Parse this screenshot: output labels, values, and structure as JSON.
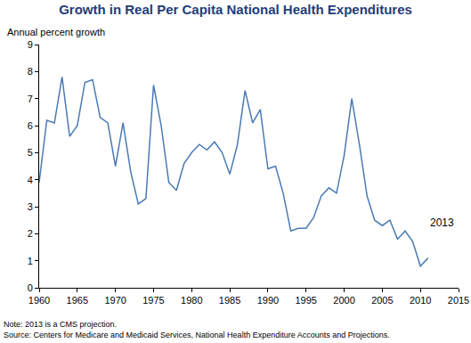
{
  "chart_data": {
    "type": "line",
    "title": "Growth in Real Per Capita National Health Expenditures",
    "y_label": "Annual percent growth",
    "notes": [
      "Note: 2013 is a CMS projection.",
      "Source: Centers for Medicare and Medicaid Services, National Health Expenditure Accounts and Projections."
    ],
    "x": [
      1960,
      1961,
      1962,
      1963,
      1964,
      1965,
      1966,
      1967,
      1968,
      1969,
      1970,
      1971,
      1972,
      1973,
      1974,
      1975,
      1976,
      1977,
      1978,
      1979,
      1980,
      1981,
      1982,
      1983,
      1984,
      1985,
      1986,
      1987,
      1988,
      1989,
      1990,
      1991,
      1992,
      1993,
      1994,
      1995,
      1996,
      1997,
      1998,
      1999,
      2000,
      2001,
      2002,
      2003,
      2004,
      2005,
      2006,
      2007,
      2008,
      2009,
      2010,
      2011
    ],
    "values": [
      3.9,
      6.2,
      6.1,
      7.8,
      5.6,
      6.0,
      7.6,
      7.7,
      6.3,
      6.1,
      4.5,
      6.1,
      4.3,
      3.1,
      3.3,
      7.5,
      6.0,
      3.9,
      3.6,
      4.6,
      5.0,
      5.3,
      5.1,
      5.4,
      5.0,
      4.2,
      5.3,
      7.3,
      6.1,
      6.6,
      4.4,
      4.5,
      3.5,
      2.1,
      2.2,
      2.2,
      2.6,
      3.4,
      3.7,
      3.5,
      4.9,
      7.0,
      5.3,
      3.4,
      2.5,
      2.3,
      2.5,
      1.8,
      2.1,
      1.7,
      0.8,
      1.1
    ],
    "color": "#4a7ab5",
    "xlim": [
      1960,
      2015
    ],
    "xticks": [
      1960,
      1965,
      1970,
      1975,
      1980,
      1985,
      1990,
      1995,
      2000,
      2005,
      2010,
      2015
    ],
    "ylim": [
      0,
      9
    ],
    "yticks": [
      0,
      1,
      2,
      3,
      4,
      5,
      6,
      7,
      8,
      9
    ],
    "grid": false,
    "annotations": [
      {
        "text": "2013",
        "x": 2011,
        "y": 2.1
      }
    ]
  }
}
